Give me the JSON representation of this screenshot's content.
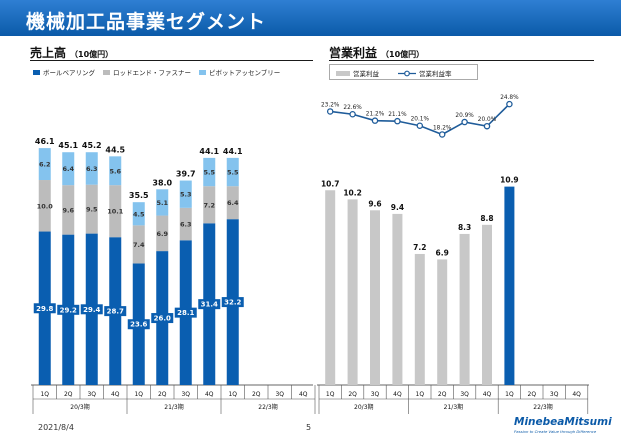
{
  "header": {
    "title": "機械加工品事業セグメント"
  },
  "left": {
    "title": "売上高",
    "unit": "（10億円）",
    "legend": [
      "ボールベアリング",
      "ロッドエンド・ファスナー",
      "ピボットアッセンブリー"
    ]
  },
  "right": {
    "title": "営業利益",
    "unit": "（10億円）",
    "legend": [
      "営業利益",
      "営業利益率"
    ]
  },
  "footer": {
    "date": "2021/8/4",
    "page": "5",
    "logo": "MinebeaMitsumi",
    "tagline": "Passion to Create Value through Difference"
  },
  "colors": {
    "header": "#0b5aa8",
    "bearing": "#0a5eb0",
    "rod": "#bcbcbc",
    "pivot": "#84c3ee",
    "op": "#c8c8c8",
    "op_highlight": "#0a5eb0",
    "margin_line": "#1f5c9a"
  },
  "chart_data": [
    {
      "type": "bar",
      "stacked": true,
      "title": "売上高",
      "ylabel": "10億円",
      "categories": [
        "1Q",
        "2Q",
        "3Q",
        "4Q",
        "1Q",
        "2Q",
        "3Q",
        "4Q",
        "1Q",
        "2Q",
        "3Q",
        "4Q"
      ],
      "groups": [
        {
          "label": "20/3期",
          "span": 4
        },
        {
          "label": "21/3期",
          "span": 4
        },
        {
          "label": "22/3期",
          "span": 4
        }
      ],
      "series": [
        {
          "name": "ボールベアリング",
          "values": [
            29.8,
            29.2,
            29.4,
            28.7,
            23.6,
            26.0,
            28.1,
            31.4,
            32.2,
            null,
            null,
            null
          ]
        },
        {
          "name": "ロッドエンド・ファスナー",
          "values": [
            10.0,
            9.6,
            9.5,
            10.1,
            7.4,
            6.9,
            6.3,
            7.2,
            6.4,
            null,
            null,
            null
          ]
        },
        {
          "name": "ピボットアッセンブリー",
          "values": [
            6.2,
            6.4,
            6.3,
            5.6,
            4.5,
            5.1,
            5.3,
            5.5,
            5.5,
            null,
            null,
            null
          ]
        }
      ],
      "totals": [
        46.1,
        45.1,
        45.2,
        44.5,
        35.5,
        38.0,
        39.7,
        44.1,
        44.1,
        null,
        null,
        null
      ],
      "value_labels": {
        "bearing": [
          "29.8",
          "29.2",
          "29.4",
          "28.7",
          "23.6",
          "26.0",
          "28.1",
          "31.4",
          "32.2"
        ],
        "rod": [
          "10.0",
          "9.6",
          "9.5",
          "10.1",
          "7.4",
          "6.9",
          "6.3",
          "7.2",
          "6.4"
        ],
        "pivot": [
          "6.2",
          "6.4",
          "6.3",
          "5.6",
          "4.5",
          "5.1",
          "5.3",
          "5.5",
          "5.5"
        ],
        "totals": [
          "46.1",
          "45.1",
          "45.2",
          "44.5",
          "35.5",
          "38.0",
          "39.7",
          "44.1",
          "44.1"
        ]
      },
      "ylim": [
        0,
        50
      ]
    },
    {
      "type": "bar+line",
      "title": "営業利益",
      "categories": [
        "1Q",
        "2Q",
        "3Q",
        "4Q",
        "1Q",
        "2Q",
        "3Q",
        "4Q",
        "1Q",
        "2Q",
        "3Q",
        "4Q"
      ],
      "groups": [
        {
          "label": "20/3期",
          "span": 4
        },
        {
          "label": "21/3期",
          "span": 4
        },
        {
          "label": "22/3期",
          "span": 4
        }
      ],
      "series": [
        {
          "name": "営業利益",
          "values": [
            10.7,
            10.2,
            9.6,
            9.4,
            7.2,
            6.9,
            8.3,
            8.8,
            10.9,
            null,
            null,
            null
          ]
        },
        {
          "name": "営業利益率",
          "unit": "%",
          "values": [
            23.2,
            22.6,
            21.2,
            21.1,
            20.1,
            18.2,
            20.9,
            20.0,
            24.8,
            null,
            null,
            null
          ]
        }
      ],
      "value_labels": {
        "op": [
          "10.7",
          "10.2",
          "9.6",
          "9.4",
          "7.2",
          "6.9",
          "8.3",
          "8.8",
          "10.9"
        ],
        "margin": [
          "23.2%",
          "22.6%",
          "21.2%",
          "21.1%",
          "20.1%",
          "18.2%",
          "20.9%",
          "20.0%",
          "24.8%"
        ]
      },
      "highlight_index": 8
    }
  ]
}
